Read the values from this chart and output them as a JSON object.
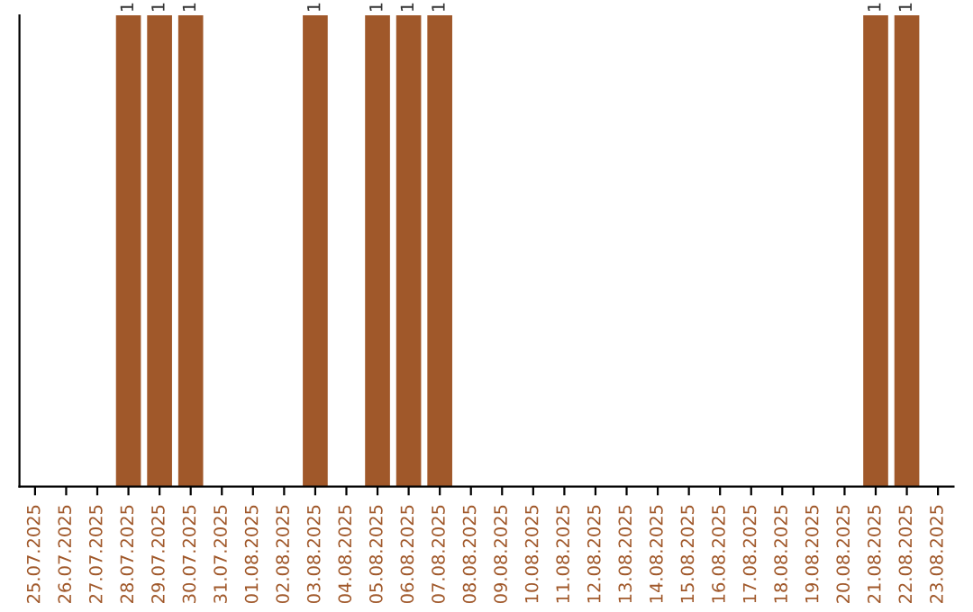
{
  "chart_data": {
    "type": "bar",
    "tick_labels": "x",
    "categories": [
      "25.07.2025",
      "26.07.2025",
      "27.07.2025",
      "28.07.2025",
      "29.07.2025",
      "30.07.2025",
      "31.07.2025",
      "01.08.2025",
      "02.08.2025",
      "03.08.2025",
      "04.08.2025",
      "05.08.2025",
      "06.08.2025",
      "07.08.2025",
      "08.08.2025",
      "09.08.2025",
      "10.08.2025",
      "11.08.2025",
      "12.08.2025",
      "13.08.2025",
      "14.08.2025",
      "15.08.2025",
      "16.08.2025",
      "17.08.2025",
      "18.08.2025",
      "19.08.2025",
      "20.08.2025",
      "21.08.2025",
      "22.08.2025",
      "23.08.2025"
    ],
    "values": [
      0,
      0,
      0,
      1,
      1,
      1,
      0,
      0,
      0,
      1,
      0,
      1,
      1,
      1,
      0,
      0,
      0,
      0,
      0,
      0,
      0,
      0,
      0,
      0,
      0,
      0,
      0,
      1,
      1,
      0
    ],
    "value_labels": [
      null,
      null,
      null,
      "1",
      "1",
      "1",
      null,
      null,
      null,
      "1",
      null,
      "1",
      "1",
      "1",
      null,
      null,
      null,
      null,
      null,
      null,
      null,
      null,
      null,
      null,
      null,
      null,
      null,
      "1",
      "1",
      null
    ],
    "color": "#a0582a",
    "grid": false,
    "legend": false
  }
}
